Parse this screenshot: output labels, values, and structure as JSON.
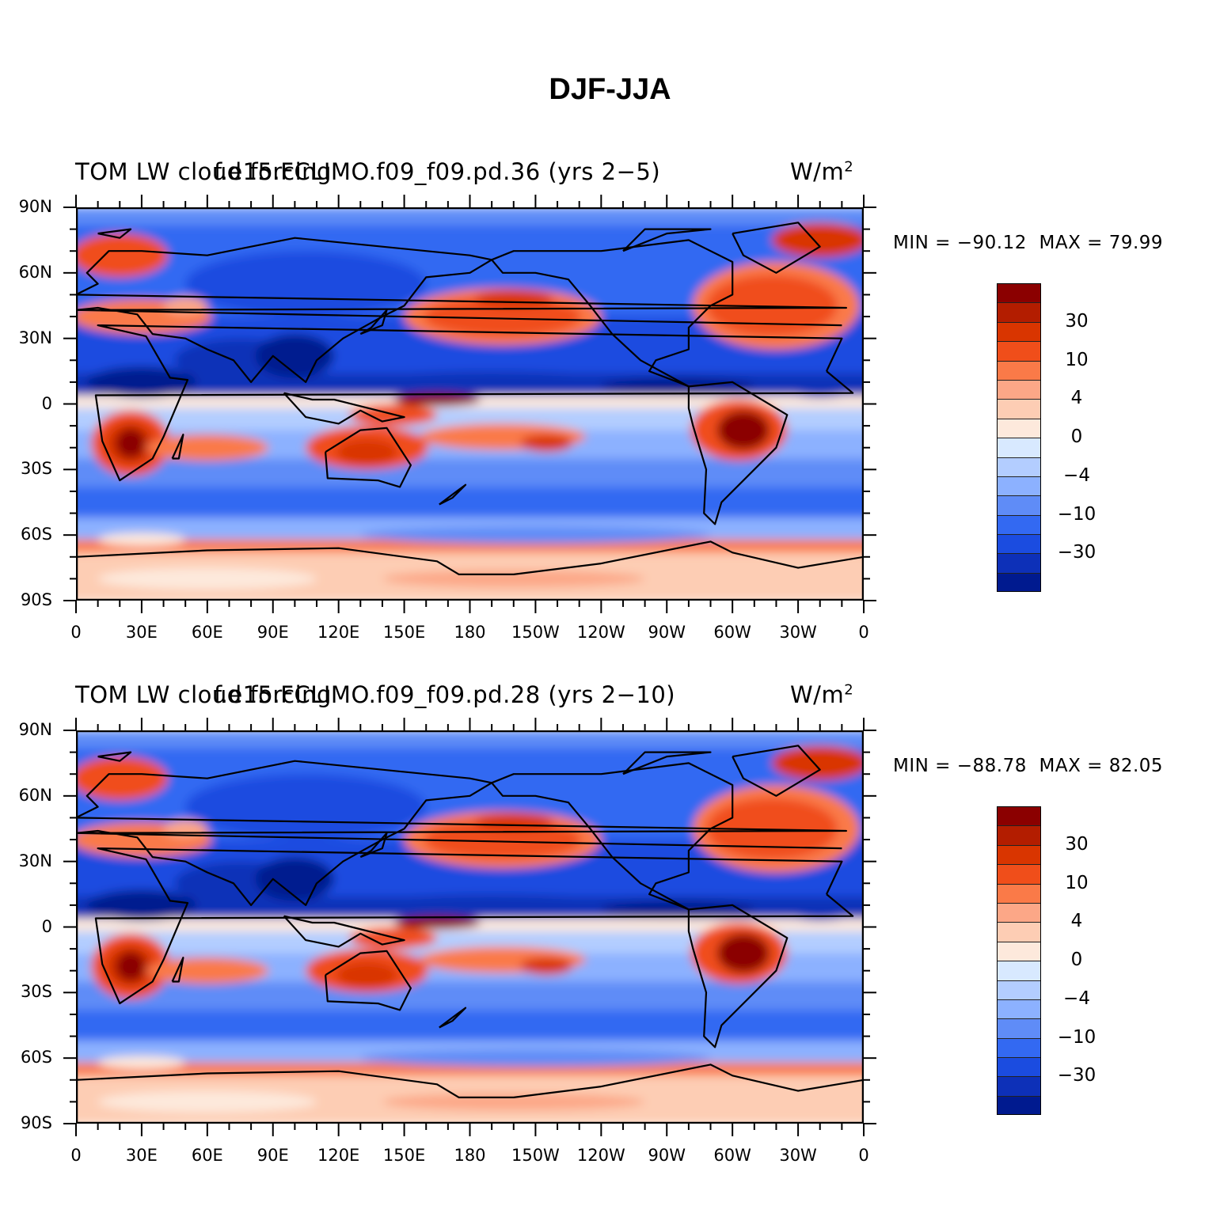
{
  "title": "DJF-JJA",
  "levels": [
    "30",
    "10",
    "4",
    "0",
    "−4",
    "−10",
    "−30"
  ],
  "colorbar_colors": [
    "#8b0000",
    "#b31d00",
    "#d93500",
    "#f04e1a",
    "#fa7a48",
    "#fca787",
    "#fdcdb4",
    "#fde9dc",
    "#d8e9ff",
    "#b3cdff",
    "#8cb1ff",
    "#5f8cf7",
    "#3369f2",
    "#1b4ce0",
    "#0d30b8",
    "#001a8f"
  ],
  "axes": {
    "lat_ticks": [
      "90N",
      "60N",
      "30N",
      "0",
      "30S",
      "60S",
      "90S"
    ],
    "lon_ticks": [
      "0",
      "30E",
      "60E",
      "90E",
      "120E",
      "150E",
      "180",
      "150W",
      "120W",
      "90W",
      "60W",
      "30W",
      "0"
    ]
  },
  "panels": [
    {
      "left_string": "TOM LW cloud forcing",
      "center_string": "f.e15.FCLIMO.f09_f09.pd.36 (yrs 2−5)",
      "units": "W/m",
      "units_sup": "2",
      "min_label": "MIN = ",
      "min_value": "−90.12",
      "max_label": "MAX = ",
      "max_value": "79.99"
    },
    {
      "left_string": "TOM LW cloud forcing",
      "center_string": "f.e15.FCLIMO.f09_f09.pd.28 (yrs 2−10)",
      "units": "W/m",
      "units_sup": "2",
      "min_label": "MIN = ",
      "min_value": "−88.78",
      "max_label": "MAX = ",
      "max_value": "82.05"
    }
  ]
}
